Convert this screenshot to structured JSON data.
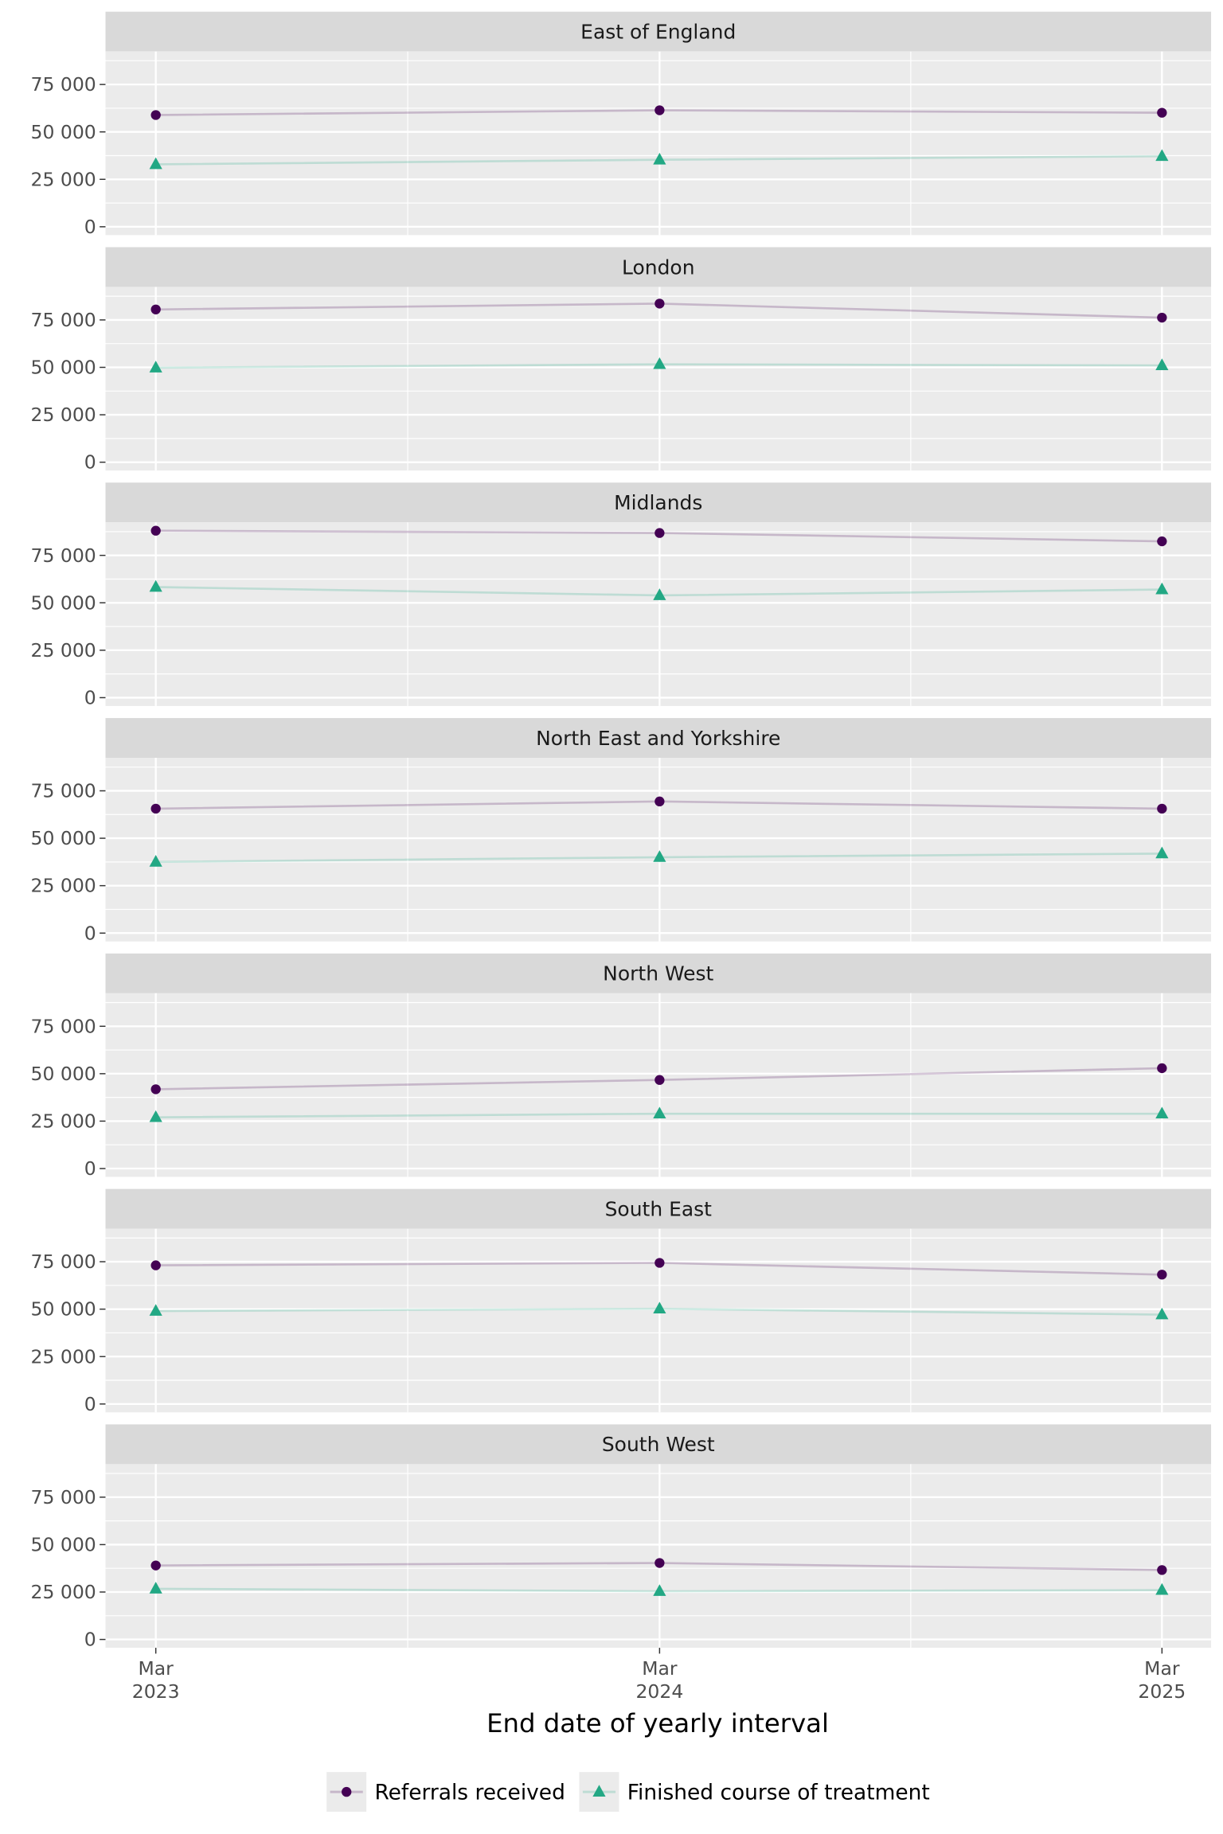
{
  "chart_data": {
    "type": "line",
    "facet_layout": "7 rows, 1 column, shared axes",
    "xlabel": "End date of yearly interval",
    "ylabel": "",
    "x": [
      "2023-03-31",
      "2024-03-31",
      "2025-03-31"
    ],
    "x_tick_labels": [
      [
        "Mar",
        "2023"
      ],
      [
        "Mar",
        "2024"
      ],
      [
        "Mar",
        "2025"
      ]
    ],
    "y_ticks": [
      0,
      25000,
      50000,
      75000
    ],
    "y_tick_labels": [
      "0",
      "25 000",
      "50 000",
      "75 000"
    ],
    "ylim": [
      -4400,
      92400
    ],
    "grid": true,
    "legend_position": "bottom",
    "series_style": [
      {
        "name": "Referrals received",
        "color": "#440154",
        "marker": "circle"
      },
      {
        "name": "Finished course of treatment",
        "color": "#22A884",
        "marker": "triangle"
      }
    ],
    "panels": [
      {
        "title": "East of England",
        "series": [
          {
            "name": "Referrals received",
            "values": [
              58900,
              61400,
              60100
            ]
          },
          {
            "name": "Finished course of treatment",
            "values": [
              32900,
              35300,
              37200
            ]
          }
        ]
      },
      {
        "title": "London",
        "series": [
          {
            "name": "Referrals received",
            "values": [
              80500,
              83600,
              76200
            ]
          },
          {
            "name": "Finished course of treatment",
            "values": [
              49800,
              51600,
              51000
            ]
          }
        ]
      },
      {
        "title": "Midlands",
        "series": [
          {
            "name": "Referrals received",
            "values": [
              88000,
              86800,
              82400
            ]
          },
          {
            "name": "Finished course of treatment",
            "values": [
              58300,
              53900,
              57000
            ]
          }
        ]
      },
      {
        "title": "North East and Yorkshire",
        "series": [
          {
            "name": "Referrals received",
            "values": [
              65600,
              69400,
              65600
            ]
          },
          {
            "name": "Finished course of treatment",
            "values": [
              37500,
              40000,
              41900
            ]
          }
        ]
      },
      {
        "title": "North West",
        "series": [
          {
            "name": "Referrals received",
            "values": [
              41800,
              46700,
              52900
            ]
          },
          {
            "name": "Finished course of treatment",
            "values": [
              27000,
              28900,
              28900
            ]
          }
        ]
      },
      {
        "title": "South East",
        "series": [
          {
            "name": "Referrals received",
            "values": [
              73100,
              74400,
              68200
            ]
          },
          {
            "name": "Finished course of treatment",
            "values": [
              49000,
              50200,
              47100
            ]
          }
        ]
      },
      {
        "title": "South West",
        "series": [
          {
            "name": "Referrals received",
            "values": [
              39000,
              40300,
              36600
            ]
          },
          {
            "name": "Finished course of treatment",
            "values": [
              26700,
              25400,
              26000
            ]
          }
        ]
      }
    ]
  }
}
